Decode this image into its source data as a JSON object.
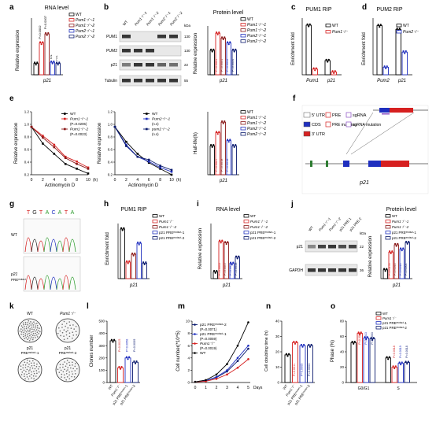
{
  "a": {
    "label": "a",
    "title": "RNA level",
    "ylabel": "Relative expression",
    "xlabel": "p21",
    "legend": [
      "WT",
      "Pum1⁻/⁻-1",
      "Pum1⁻/⁻-2",
      "Pum2⁻/⁻-1",
      "Pum2⁻/⁻-2"
    ],
    "pvals": [
      "P=0.0002",
      "P=0.0007",
      "n.s.",
      "n.s."
    ]
  },
  "b": {
    "label": "b",
    "title": "Protein level",
    "ylabel": "Relative expression",
    "xlabel": "p21",
    "lanes": [
      "WT",
      "Pum1⁻/⁻-1",
      "Pum1⁻/⁻-2",
      "Pum2⁻/⁻-1",
      "Pum2⁻/⁻-2"
    ],
    "blots": [
      "PUM1",
      "PUM2",
      "p21",
      "Tubulin"
    ],
    "kda": [
      "kDa",
      "130",
      "130",
      "22",
      "55"
    ],
    "legend": [
      "WT",
      "Pum1⁻/⁻-1",
      "Pum1⁻/⁻-2",
      "Pum2⁻/⁻-1",
      "Pum2⁻/⁻-2"
    ],
    "pvals": [
      "P=0.0001",
      "P=0.0001",
      "P=0.0052",
      "P=0.0034"
    ]
  },
  "c": {
    "label": "c",
    "title": "PUM1 RIP",
    "ylabel": "Enrichment fold",
    "x": [
      "Pum1",
      "p21"
    ],
    "legend": [
      "WT",
      "Pum1⁻/⁻"
    ]
  },
  "d": {
    "label": "d",
    "title": "PUM2 RIP",
    "ylabel": "Enrichment fold",
    "x": [
      "Pum2",
      "p21"
    ],
    "legend": [
      "WT",
      "Pum2⁻/⁻"
    ]
  },
  "e": {
    "label": "e",
    "ylabel": "Relative expression",
    "xlabel": "Actinomycin D",
    "unit": "(h)",
    "ticks_x": [
      "0",
      "2",
      "4",
      "6",
      "8",
      "10"
    ],
    "ticks_y": [
      "0.2",
      "0.4",
      "0.6",
      "0.8",
      "1.0",
      "1.2"
    ],
    "legend1": [
      "WT",
      "Pum1⁻/⁻-1",
      "(P=0.0206)",
      "Pum1⁻/⁻-2",
      "(P=0.0023)"
    ],
    "legend2": [
      "WT",
      "Pum2⁻/⁻-1",
      "(n.s)",
      "pum2⁻/⁻-2",
      "(n.s)"
    ],
    "bar_ylabel": "Half-life(h)",
    "bar_xlabel": "p21",
    "bar_legend": [
      "WT",
      "Pum1⁻/⁻-1",
      "Pum1⁻/⁻-2",
      "Pum2⁻/⁻-1",
      "Pum2⁻/⁻-2"
    ],
    "pvals": [
      "P=0.0027",
      "P=0.0018",
      "P=0.0018"
    ]
  },
  "f": {
    "label": "f",
    "legend": [
      "5' UTR",
      "CDS",
      "3' UTR",
      "PRE",
      "PRE mutation",
      "sgRNA",
      "sgRNA mutation"
    ],
    "xlabel": "p21"
  },
  "g": {
    "label": "g",
    "seq": [
      "T",
      "G",
      "T",
      "A",
      "C",
      "A",
      "T",
      "A"
    ],
    "rows": [
      "WT",
      "p21",
      "PREᵐᵘᵗᵃⁿᵗ"
    ]
  },
  "h": {
    "label": "h",
    "title": "PUM1 RIP",
    "ylabel": "Enrichment fold",
    "xlabel": "p21",
    "legend": [
      "WT",
      "Pum1⁻/⁻",
      "Pum1⁻/⁻-2",
      "p21 PREᵐᵘᵗᵃⁿᵗ-1",
      "p21 PREᵐᵘᵗᵃⁿᵗ-2"
    ]
  },
  "i": {
    "label": "i",
    "title": "RNA level",
    "ylabel": "Relative expression",
    "xlabel": "p21",
    "legend": [
      "WT",
      "Pum1⁻/⁻-1",
      "Pum1⁻/⁻-2",
      "p21 PREᵐᵘᵗᵃⁿᵗ-1",
      "p21 PREᵐᵘᵗᵃⁿᵗ-2"
    ],
    "pvals": [
      "P=0.0002",
      "P=0.0007",
      "P=0.0012",
      "P=0.0058"
    ]
  },
  "j": {
    "label": "j",
    "title": "Protein level",
    "ylabel": "Relative expression",
    "xlabel": "p21",
    "lanes": [
      "WT",
      "Pum1⁻/⁻-1",
      "Pum1⁻/⁻-2",
      "p21 PRE-1",
      "p21 PRE-2"
    ],
    "blots": [
      "p21",
      "GAPDH"
    ],
    "kda": [
      "kDa",
      "22",
      "36"
    ],
    "legend": [
      "WT",
      "Pum1⁻/⁻-1",
      "Pum1⁻/⁻-2",
      "p21 PREᵐᵘᵗᵃⁿᵗ-1",
      "p21 PREᵐᵘᵗᵃⁿᵗ-2"
    ],
    "pvals": [
      "P=0.0178",
      "P=0.0046",
      "P=0.0016",
      "P=0.0004"
    ]
  },
  "k": {
    "label": "k",
    "wells": [
      "WT",
      "Pum1⁻/⁻",
      "p21",
      "PREᵐᵘᵗᵃⁿᵗ-1",
      "p21",
      "PREᵐᵘᵗᵃⁿᵗ-2"
    ]
  },
  "l": {
    "label": "l",
    "ylabel": "Clones number",
    "ticks_y": [
      "0",
      "100",
      "200",
      "300",
      "400",
      "500"
    ],
    "x": [
      "WT",
      "Pum1⁻/⁻",
      "p21 PREᵐᵘᵗᵃⁿᵗ-1",
      "p21 PREᵐᵘᵗᵃⁿᵗ-2"
    ],
    "pvals": [
      "P=0.0015",
      "P=0.0058",
      "P=0.0039"
    ]
  },
  "m": {
    "label": "m",
    "ylabel": "Cell number(*10^5)",
    "xlabel": "Days",
    "ticks_x": [
      "0",
      "1",
      "2",
      "3",
      "4",
      "5"
    ],
    "ticks_y": [
      "0",
      "2",
      "4",
      "6",
      "8",
      "10"
    ],
    "legend": [
      "p21 PREᵐᵘᵗᵃⁿᵗ-2",
      "(P=0.0071)",
      "p21 PREᵐᵘᵗᵃⁿᵗ-1",
      "(P=0.0059)",
      "Pum1⁻/⁻",
      "(P=0.0019)",
      "WT"
    ]
  },
  "n": {
    "label": "n",
    "ylabel": "Cell doubling time (h)",
    "ticks_y": [
      "0",
      "10",
      "20",
      "30",
      "40"
    ],
    "x": [
      "WT",
      "Pum1⁻/⁻",
      "p21 PREᵐᵘᵗᵃⁿᵗ-1",
      "p21 PREᵐᵘᵗᵃⁿᵗ-2"
    ],
    "pvals": [
      "P=0.0011",
      "P=0.0005",
      "P=0.0003"
    ]
  },
  "o": {
    "label": "o",
    "ylabel": "Phase (%)",
    "ticks_y": [
      "0",
      "20",
      "40",
      "60",
      "80"
    ],
    "x": [
      "G0/G1",
      "S"
    ],
    "legend": [
      "WT",
      "Pum1⁻/⁻",
      "p21 PREᵐᵘᵗᵃⁿᵗ-1",
      "p21 PREᵐᵘᵗᵃⁿᵗ-2"
    ],
    "pvals": [
      "P=0.0001",
      "P=0.0013",
      "P=0.0003",
      "P=0.0018",
      "P=0.0019",
      "P=0.0018"
    ]
  },
  "colors": {
    "wt": "#000000",
    "red": "#d62020",
    "darkred": "#8b1a1a",
    "blue": "#1f2fbf",
    "navy": "#0a1a6e"
  },
  "chart_data": [
    {
      "type": "bar",
      "panel": "a",
      "categories": [
        "p21"
      ],
      "series": [
        {
          "name": "WT",
          "values": [
            1.0
          ]
        },
        {
          "name": "Pum1⁻/⁻-1",
          "values": [
            2.8
          ]
        },
        {
          "name": "Pum1⁻/⁻-2",
          "values": [
            3.6
          ]
        },
        {
          "name": "Pum2⁻/⁻-1",
          "values": [
            1.1
          ]
        },
        {
          "name": "Pum2⁻/⁻-2",
          "values": [
            1.0
          ]
        }
      ],
      "ylim": [
        0,
        5
      ]
    },
    {
      "type": "bar",
      "panel": "b",
      "categories": [
        "p21"
      ],
      "series": [
        {
          "name": "WT",
          "values": [
            1.0
          ]
        },
        {
          "name": "Pum1⁻/⁻-1",
          "values": [
            1.7
          ]
        },
        {
          "name": "Pum1⁻/⁻-2",
          "values": [
            1.5
          ]
        },
        {
          "name": "Pum2⁻/⁻-1",
          "values": [
            1.3
          ]
        },
        {
          "name": "Pum2⁻/⁻-2",
          "values": [
            1.0
          ]
        }
      ],
      "ylim": [
        0,
        2
      ]
    },
    {
      "type": "bar",
      "panel": "c",
      "categories": [
        "Pum1",
        "p21"
      ],
      "series": [
        {
          "name": "WT",
          "values": [
            35,
            10
          ]
        },
        {
          "name": "Pum1⁻/⁻",
          "values": [
            4,
            2
          ]
        }
      ],
      "ylim": [
        0,
        40
      ]
    },
    {
      "type": "bar",
      "panel": "d",
      "categories": [
        "Pum2",
        "p21"
      ],
      "series": [
        {
          "name": "WT",
          "values": [
            13,
            12
          ]
        },
        {
          "name": "Pum2⁻/⁻",
          "values": [
            2,
            6
          ]
        }
      ],
      "ylim": [
        0,
        15
      ]
    },
    {
      "type": "line",
      "panel": "e-left",
      "x": [
        0,
        2,
        4,
        6,
        8,
        10
      ],
      "series": [
        {
          "name": "WT",
          "values": [
            1.0,
            0.72,
            0.55,
            0.38,
            0.3,
            0.22
          ]
        },
        {
          "name": "Pum1⁻/⁻-1",
          "values": [
            1.0,
            0.85,
            0.7,
            0.5,
            0.42,
            0.32
          ]
        },
        {
          "name": "Pum1⁻/⁻-2",
          "values": [
            1.0,
            0.82,
            0.66,
            0.48,
            0.38,
            0.3
          ]
        }
      ],
      "ylim": [
        0.2,
        1.2
      ]
    },
    {
      "type": "line",
      "panel": "e-mid",
      "x": [
        0,
        2,
        4,
        6,
        8,
        10
      ],
      "series": [
        {
          "name": "WT",
          "values": [
            1.0,
            0.75,
            0.55,
            0.4,
            0.3,
            0.2
          ]
        },
        {
          "name": "Pum2⁻/⁻-1",
          "values": [
            1.0,
            0.7,
            0.5,
            0.42,
            0.32,
            0.25
          ]
        },
        {
          "name": "pum2⁻/⁻-2",
          "values": [
            1.0,
            0.68,
            0.5,
            0.45,
            0.35,
            0.28
          ]
        }
      ],
      "ylim": [
        0.2,
        1.2
      ]
    },
    {
      "type": "bar",
      "panel": "e-right",
      "categories": [
        "p21"
      ],
      "series": [
        {
          "name": "WT",
          "values": [
            5.5
          ]
        },
        {
          "name": "Pum1⁻/⁻-1",
          "values": [
            8
          ]
        },
        {
          "name": "Pum1⁻/⁻-2",
          "values": [
            10
          ]
        },
        {
          "name": "Pum2⁻/⁻-1",
          "values": [
            6.5
          ]
        },
        {
          "name": "Pum2⁻/⁻-2",
          "values": [
            5.5
          ]
        }
      ],
      "ylim": [
        0,
        12
      ]
    },
    {
      "type": "bar",
      "panel": "h",
      "categories": [
        "p21"
      ],
      "series": [
        {
          "name": "WT",
          "values": [
            45
          ]
        },
        {
          "name": "Pum1⁻/⁻",
          "values": [
            15
          ]
        },
        {
          "name": "Pum1⁻/⁻-2",
          "values": [
            22
          ]
        },
        {
          "name": "p21 PRE-1",
          "values": [
            32
          ]
        },
        {
          "name": "p21 PRE-2",
          "values": [
            14
          ]
        }
      ],
      "ylim": [
        0,
        50
      ]
    },
    {
      "type": "bar",
      "panel": "i",
      "categories": [
        "p21"
      ],
      "series": [
        {
          "name": "WT",
          "values": [
            1.0
          ]
        },
        {
          "name": "Pum1⁻/⁻-1",
          "values": [
            5.4
          ]
        },
        {
          "name": "Pum1⁻/⁻-2",
          "values": [
            5.2
          ]
        },
        {
          "name": "p21 PRE-1",
          "values": [
            2.2
          ]
        },
        {
          "name": "p21 PRE-2",
          "values": [
            3.1
          ]
        }
      ],
      "ylim": [
        0,
        8
      ]
    },
    {
      "type": "bar",
      "panel": "j",
      "categories": [
        "p21"
      ],
      "series": [
        {
          "name": "WT",
          "values": [
            1.2
          ]
        },
        {
          "name": "Pum1⁻/⁻-1",
          "values": [
            3.6
          ]
        },
        {
          "name": "Pum1⁻/⁻-2",
          "values": [
            4.6
          ]
        },
        {
          "name": "p21 PRE-1",
          "values": [
            4.0
          ]
        },
        {
          "name": "p21 PRE-2",
          "values": [
            4.9
          ]
        }
      ],
      "ylim": [
        0,
        6
      ]
    },
    {
      "type": "bar",
      "panel": "l",
      "categories": [
        "WT",
        "Pum1⁻/⁻",
        "p21 PRE-1",
        "p21 PRE-2"
      ],
      "values": [
        340,
        120,
        200,
        165
      ],
      "ylim": [
        0,
        500
      ]
    },
    {
      "type": "line",
      "panel": "m",
      "x": [
        0,
        1,
        2,
        3,
        4,
        5
      ],
      "series": [
        {
          "name": "p21 PRE-2",
          "values": [
            0.1,
            0.3,
            0.8,
            1.8,
            3.5,
            5.5
          ]
        },
        {
          "name": "p21 PRE-1",
          "values": [
            0.1,
            0.3,
            0.9,
            2.0,
            4.0,
            6.0
          ]
        },
        {
          "name": "Pum1⁻/⁻",
          "values": [
            0.1,
            0.2,
            0.6,
            1.3,
            2.4,
            3.8
          ]
        },
        {
          "name": "WT",
          "values": [
            0.1,
            0.4,
            1.3,
            3.0,
            6.0,
            9.8
          ]
        }
      ],
      "ylim": [
        0,
        10
      ]
    },
    {
      "type": "bar",
      "panel": "n",
      "categories": [
        "WT",
        "Pum1⁻/⁻",
        "p21 PRE-1",
        "p21 PRE-2"
      ],
      "values": [
        18,
        26,
        24,
        24
      ],
      "ylim": [
        0,
        40
      ]
    },
    {
      "type": "bar",
      "panel": "o",
      "categories": [
        "G0/G1",
        "S"
      ],
      "series": [
        {
          "name": "WT",
          "values": [
            52,
            32
          ]
        },
        {
          "name": "Pum1⁻/⁻",
          "values": [
            64,
            20
          ]
        },
        {
          "name": "p21 PRE-1",
          "values": [
            58,
            25
          ]
        },
        {
          "name": "p21 PRE-2",
          "values": [
            57,
            26
          ]
        }
      ],
      "ylim": [
        0,
        80
      ]
    }
  ]
}
